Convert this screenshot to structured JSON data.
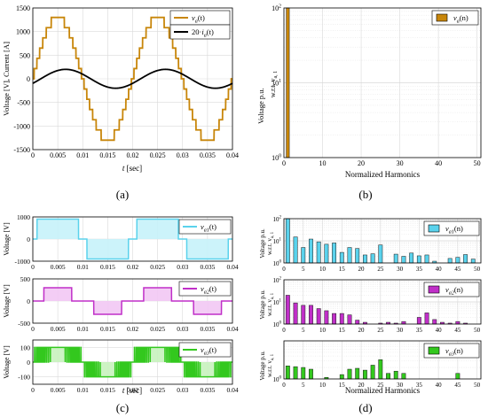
{
  "panel_labels": [
    "(a)",
    "(b)",
    "(c)",
    "(d)"
  ],
  "colors": {
    "orange": "#c8860a",
    "black": "#000000",
    "cyan": "#5ad2ec",
    "cyan_fill": "#c6f2fa",
    "magenta": "#c02fc8",
    "magenta_fill": "#f2c8f4",
    "green": "#33c81e",
    "green_fill": "#c8f2be",
    "grid": "#d9d9d9",
    "bar_edge": "#1a1a1a"
  },
  "chart_data": [
    {
      "id": "a",
      "type": "line",
      "xlabel": "t [sec]",
      "ylabel": "Voltage [V], Current [A]",
      "xlim": [
        0,
        0.04
      ],
      "ylim": [
        -1500,
        1500
      ],
      "xticks": [
        "0",
        "0.005",
        "0.01",
        "0.015",
        "0.02",
        "0.025",
        "0.03",
        "0.035",
        "0.04"
      ],
      "yticks": [
        "-1500",
        "-1000",
        "-500",
        "0",
        "500",
        "1000",
        "1500"
      ],
      "grid": true,
      "legend_position": "top-right",
      "series": [
        {
          "name": "v_a(t)",
          "kind": "staircase",
          "amplitude": 1300,
          "levels": 13,
          "frequency_hz": 50,
          "color": "orange"
        },
        {
          "name": "20·i_a(t)",
          "kind": "sine",
          "amplitude": 200,
          "phase_lag_rad": 0.5,
          "frequency_hz": 50,
          "color": "black"
        }
      ]
    },
    {
      "id": "b",
      "type": "bar",
      "xlabel": "Normalized Harmonics",
      "ylabel": "Voltage p.u. w.r.t. v_a,1",
      "xlim": [
        0,
        51
      ],
      "ylim": [
        1,
        100
      ],
      "yscale": "log",
      "xticks": [
        "0",
        "10",
        "20",
        "30",
        "40",
        "50"
      ],
      "yticks": [
        "10^0",
        "10^1",
        "10^2"
      ],
      "grid": true,
      "legend_position": "top-right",
      "series": [
        {
          "name": "v_a(n)",
          "color": "orange",
          "x": [
            1
          ],
          "values": [
            100
          ]
        }
      ]
    },
    {
      "id": "c",
      "type": "line",
      "xlabel": "t [sec]",
      "xlim": [
        0,
        0.04
      ],
      "xticks": [
        "0",
        "0.005",
        "0.01",
        "0.015",
        "0.02",
        "0.025",
        "0.03",
        "0.035",
        "0.04"
      ],
      "grid": true,
      "subplots": [
        {
          "name": "v_a1(t)",
          "ylabel": "Voltage [V]",
          "ylim": [
            -1000,
            1000
          ],
          "yticks": [
            "-1000",
            "0",
            "1000"
          ],
          "color": "cyan",
          "fill": "cyan_fill",
          "kind": "pwm",
          "level": 900,
          "carriers": 0
        },
        {
          "name": "v_a2(t)",
          "ylabel": "Voltage [V]",
          "ylim": [
            -500,
            500
          ],
          "yticks": [
            "-500",
            "0",
            "500"
          ],
          "color": "magenta",
          "fill": "magenta_fill",
          "kind": "pwm",
          "level": 300,
          "carriers": 3
        },
        {
          "name": "v_a3(t)",
          "ylabel": "Voltage [V]",
          "ylim": [
            -150,
            150
          ],
          "yticks": [
            "-100",
            "0",
            "100"
          ],
          "color": "green",
          "fill": "green_fill",
          "kind": "pwm",
          "level": 100,
          "carriers": 27
        }
      ]
    },
    {
      "id": "d",
      "type": "bar",
      "xlabel": "Normalized Harmonics",
      "yscale": "log",
      "xlim": [
        0,
        51
      ],
      "xticks": [
        "0",
        "5",
        "10",
        "15",
        "20",
        "25",
        "30",
        "35",
        "40",
        "45",
        "50"
      ],
      "grid": true,
      "subplots": [
        {
          "name": "v_a1(n)",
          "ylabel": "Voltage p.u. w.r.t. v_a,1",
          "ylim": [
            1,
            100
          ],
          "yticks": [
            "10^0",
            "10^1",
            "10^2"
          ],
          "color": "cyan",
          "x": [
            1,
            3,
            5,
            7,
            9,
            11,
            13,
            15,
            17,
            19,
            21,
            23,
            25,
            29,
            31,
            33,
            35,
            37,
            39,
            43,
            45,
            47,
            49
          ],
          "values": [
            100,
            15,
            5,
            12,
            9,
            7,
            8,
            3,
            5,
            4.5,
            2.3,
            2.6,
            6.5,
            2.5,
            2.0,
            2.8,
            2.1,
            2.3,
            1.2,
            1.6,
            1.8,
            2.4,
            1.5
          ]
        },
        {
          "name": "v_a2(n)",
          "ylabel": "Voltage p.u. w.r.t. v_a,1",
          "ylim": [
            1,
            100
          ],
          "yticks": [
            "10^0",
            "10^1",
            "10^2"
          ],
          "color": "magenta",
          "x": [
            1,
            3,
            5,
            7,
            9,
            11,
            13,
            15,
            17,
            19,
            21,
            25,
            27,
            29,
            31,
            35,
            37,
            39,
            41,
            43,
            45,
            47
          ],
          "values": [
            20,
            9,
            7,
            7,
            5,
            4,
            3,
            3,
            2.6,
            1.5,
            1.2,
            1.1,
            1.2,
            1.1,
            1.3,
            2.0,
            3.2,
            1.6,
            1.2,
            1.1,
            1.3,
            1.1
          ]
        },
        {
          "name": "v_a3(n)",
          "ylabel": "Voltage p.u. w.r.t. v_a,1",
          "ylim": [
            1,
            10
          ],
          "yticks": [
            "10^0"
          ],
          "color": "green",
          "x": [
            1,
            3,
            5,
            7,
            11,
            15,
            17,
            19,
            21,
            23,
            25,
            27,
            29,
            31,
            45
          ],
          "values": [
            2.2,
            2.1,
            2.0,
            1.8,
            1.1,
            1.3,
            1.8,
            1.9,
            1.7,
            2.3,
            3.2,
            1.4,
            1.6,
            1.4,
            1.4
          ]
        }
      ]
    }
  ]
}
